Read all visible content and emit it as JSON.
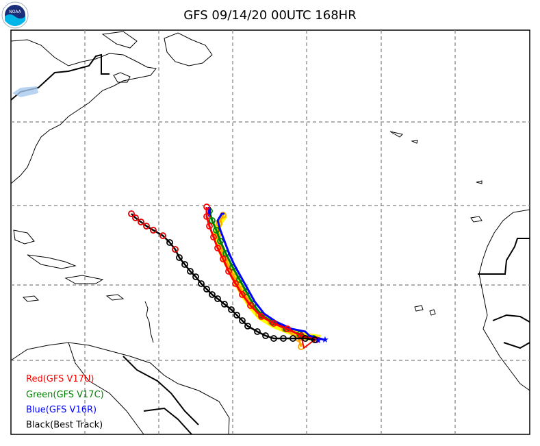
{
  "title": "GFS 09/14/20 00UTC 168HR",
  "logo": {
    "text": "NOAA",
    "icon": "noaa-logo-icon"
  },
  "legend": [
    {
      "label": "Red(GFS V17U)",
      "color": "#ff0000"
    },
    {
      "label": "Green(GFS V17C)",
      "color": "#008000"
    },
    {
      "label": "Blue(GFS V16R)",
      "color": "#0000ff"
    },
    {
      "label": "Black(Best Track)",
      "color": "#000000"
    }
  ],
  "colors": {
    "red": "#ff0000",
    "green": "#008000",
    "blue": "#0000ff",
    "black": "#000000",
    "yellow_ensemble": "#ffff00",
    "orange_ensemble": "#ffa500",
    "grid": "#808080"
  },
  "map": {
    "grid": "dashed",
    "features": [
      "storm-tracks",
      "coastlines",
      "country-borders",
      "forecast-start-star"
    ]
  }
}
